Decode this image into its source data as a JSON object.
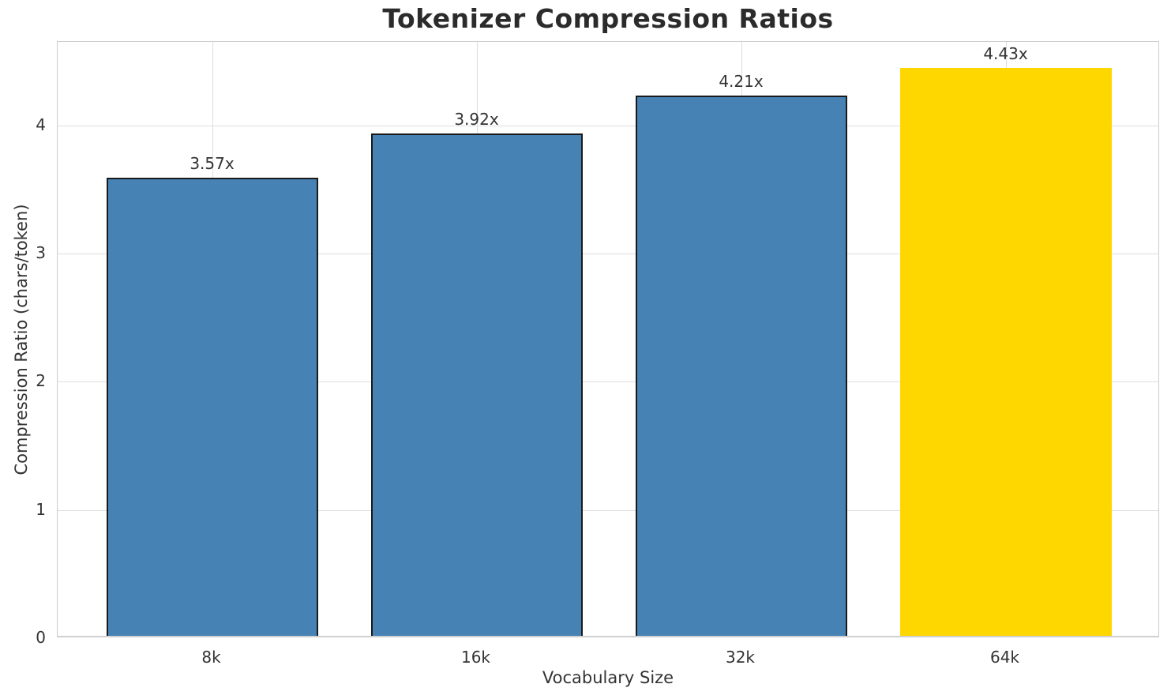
{
  "chart_data": {
    "type": "bar",
    "title": "Tokenizer Compression Ratios",
    "xlabel": "Vocabulary Size",
    "ylabel": "Compression Ratio (chars/token)",
    "categories": [
      "8k",
      "16k",
      "32k",
      "64k"
    ],
    "values": [
      3.57,
      3.92,
      4.21,
      4.43
    ],
    "bar_labels": [
      "3.57x",
      "3.92x",
      "4.21x",
      "4.43x"
    ],
    "bar_colors": [
      "#4682b4",
      "#4682b4",
      "#4682b4",
      "#ffd700"
    ],
    "bar_edges": [
      true,
      true,
      true,
      false
    ],
    "highlight_index": 3,
    "yticks": [
      0,
      1,
      2,
      3,
      4
    ],
    "ytick_labels": [
      "0",
      "1",
      "2",
      "3",
      "4"
    ],
    "ylim": [
      0,
      4.65
    ],
    "grid": true,
    "legend": null,
    "colors": {
      "bar": "#4682b4",
      "highlight": "#ffd700",
      "edge": "#1a1a1a",
      "grid": "#dedede",
      "spine": "#cccccc",
      "text": "#333333",
      "title": "#2b2b2b",
      "background": "#ffffff"
    }
  }
}
